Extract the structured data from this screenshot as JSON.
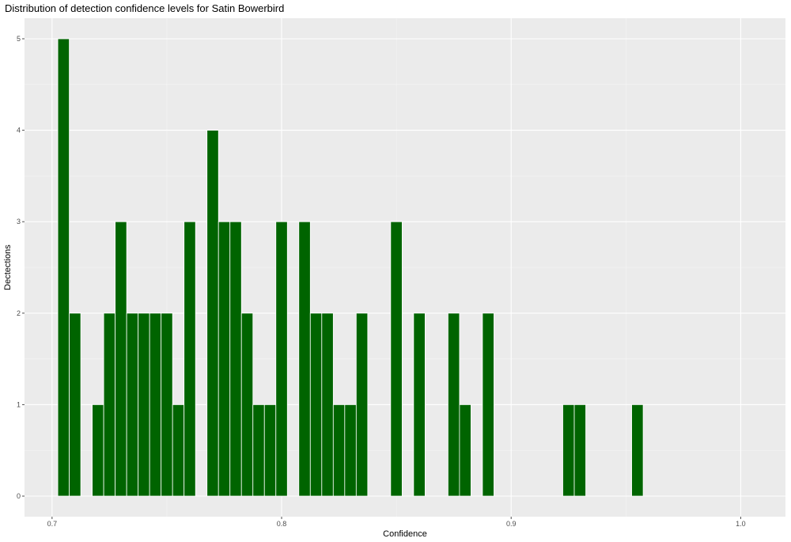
{
  "chart_data": {
    "type": "bar",
    "title": "Distribution of detection confidence levels for Satin Bowerbird",
    "xlabel": "Confidence",
    "ylabel": "Dectections",
    "xlim": [
      0.688,
      1.0195
    ],
    "ylim": [
      -0.225,
      5.225
    ],
    "x_ticks": [
      0.7,
      0.8,
      0.9,
      1.0
    ],
    "x_tick_labels": [
      "0.7",
      "0.8",
      "0.9",
      "1.0"
    ],
    "y_ticks": [
      0,
      1,
      2,
      3,
      4,
      5
    ],
    "y_tick_labels": [
      "0",
      "1",
      "2",
      "3",
      "4",
      "5"
    ],
    "bin_width": 0.005,
    "x": [
      0.705,
      0.71,
      0.72,
      0.725,
      0.73,
      0.735,
      0.74,
      0.745,
      0.75,
      0.755,
      0.76,
      0.77,
      0.775,
      0.78,
      0.785,
      0.79,
      0.795,
      0.8,
      0.81,
      0.815,
      0.82,
      0.825,
      0.83,
      0.835,
      0.85,
      0.86,
      0.875,
      0.88,
      0.89,
      0.925,
      0.93,
      0.955
    ],
    "values": [
      5,
      2,
      1,
      2,
      3,
      2,
      2,
      2,
      2,
      1,
      3,
      4,
      3,
      3,
      2,
      1,
      1,
      3,
      3,
      2,
      2,
      1,
      1,
      2,
      3,
      2,
      2,
      1,
      2,
      1,
      1,
      1
    ],
    "grid": true,
    "colors": {
      "bar_fill": "#006400",
      "bar_outline": "#ffffff",
      "panel_background": "#ebebeb",
      "grid_major": "#ffffff",
      "grid_minor": "#f5f5f5",
      "tick": "#4d4d4d"
    }
  }
}
